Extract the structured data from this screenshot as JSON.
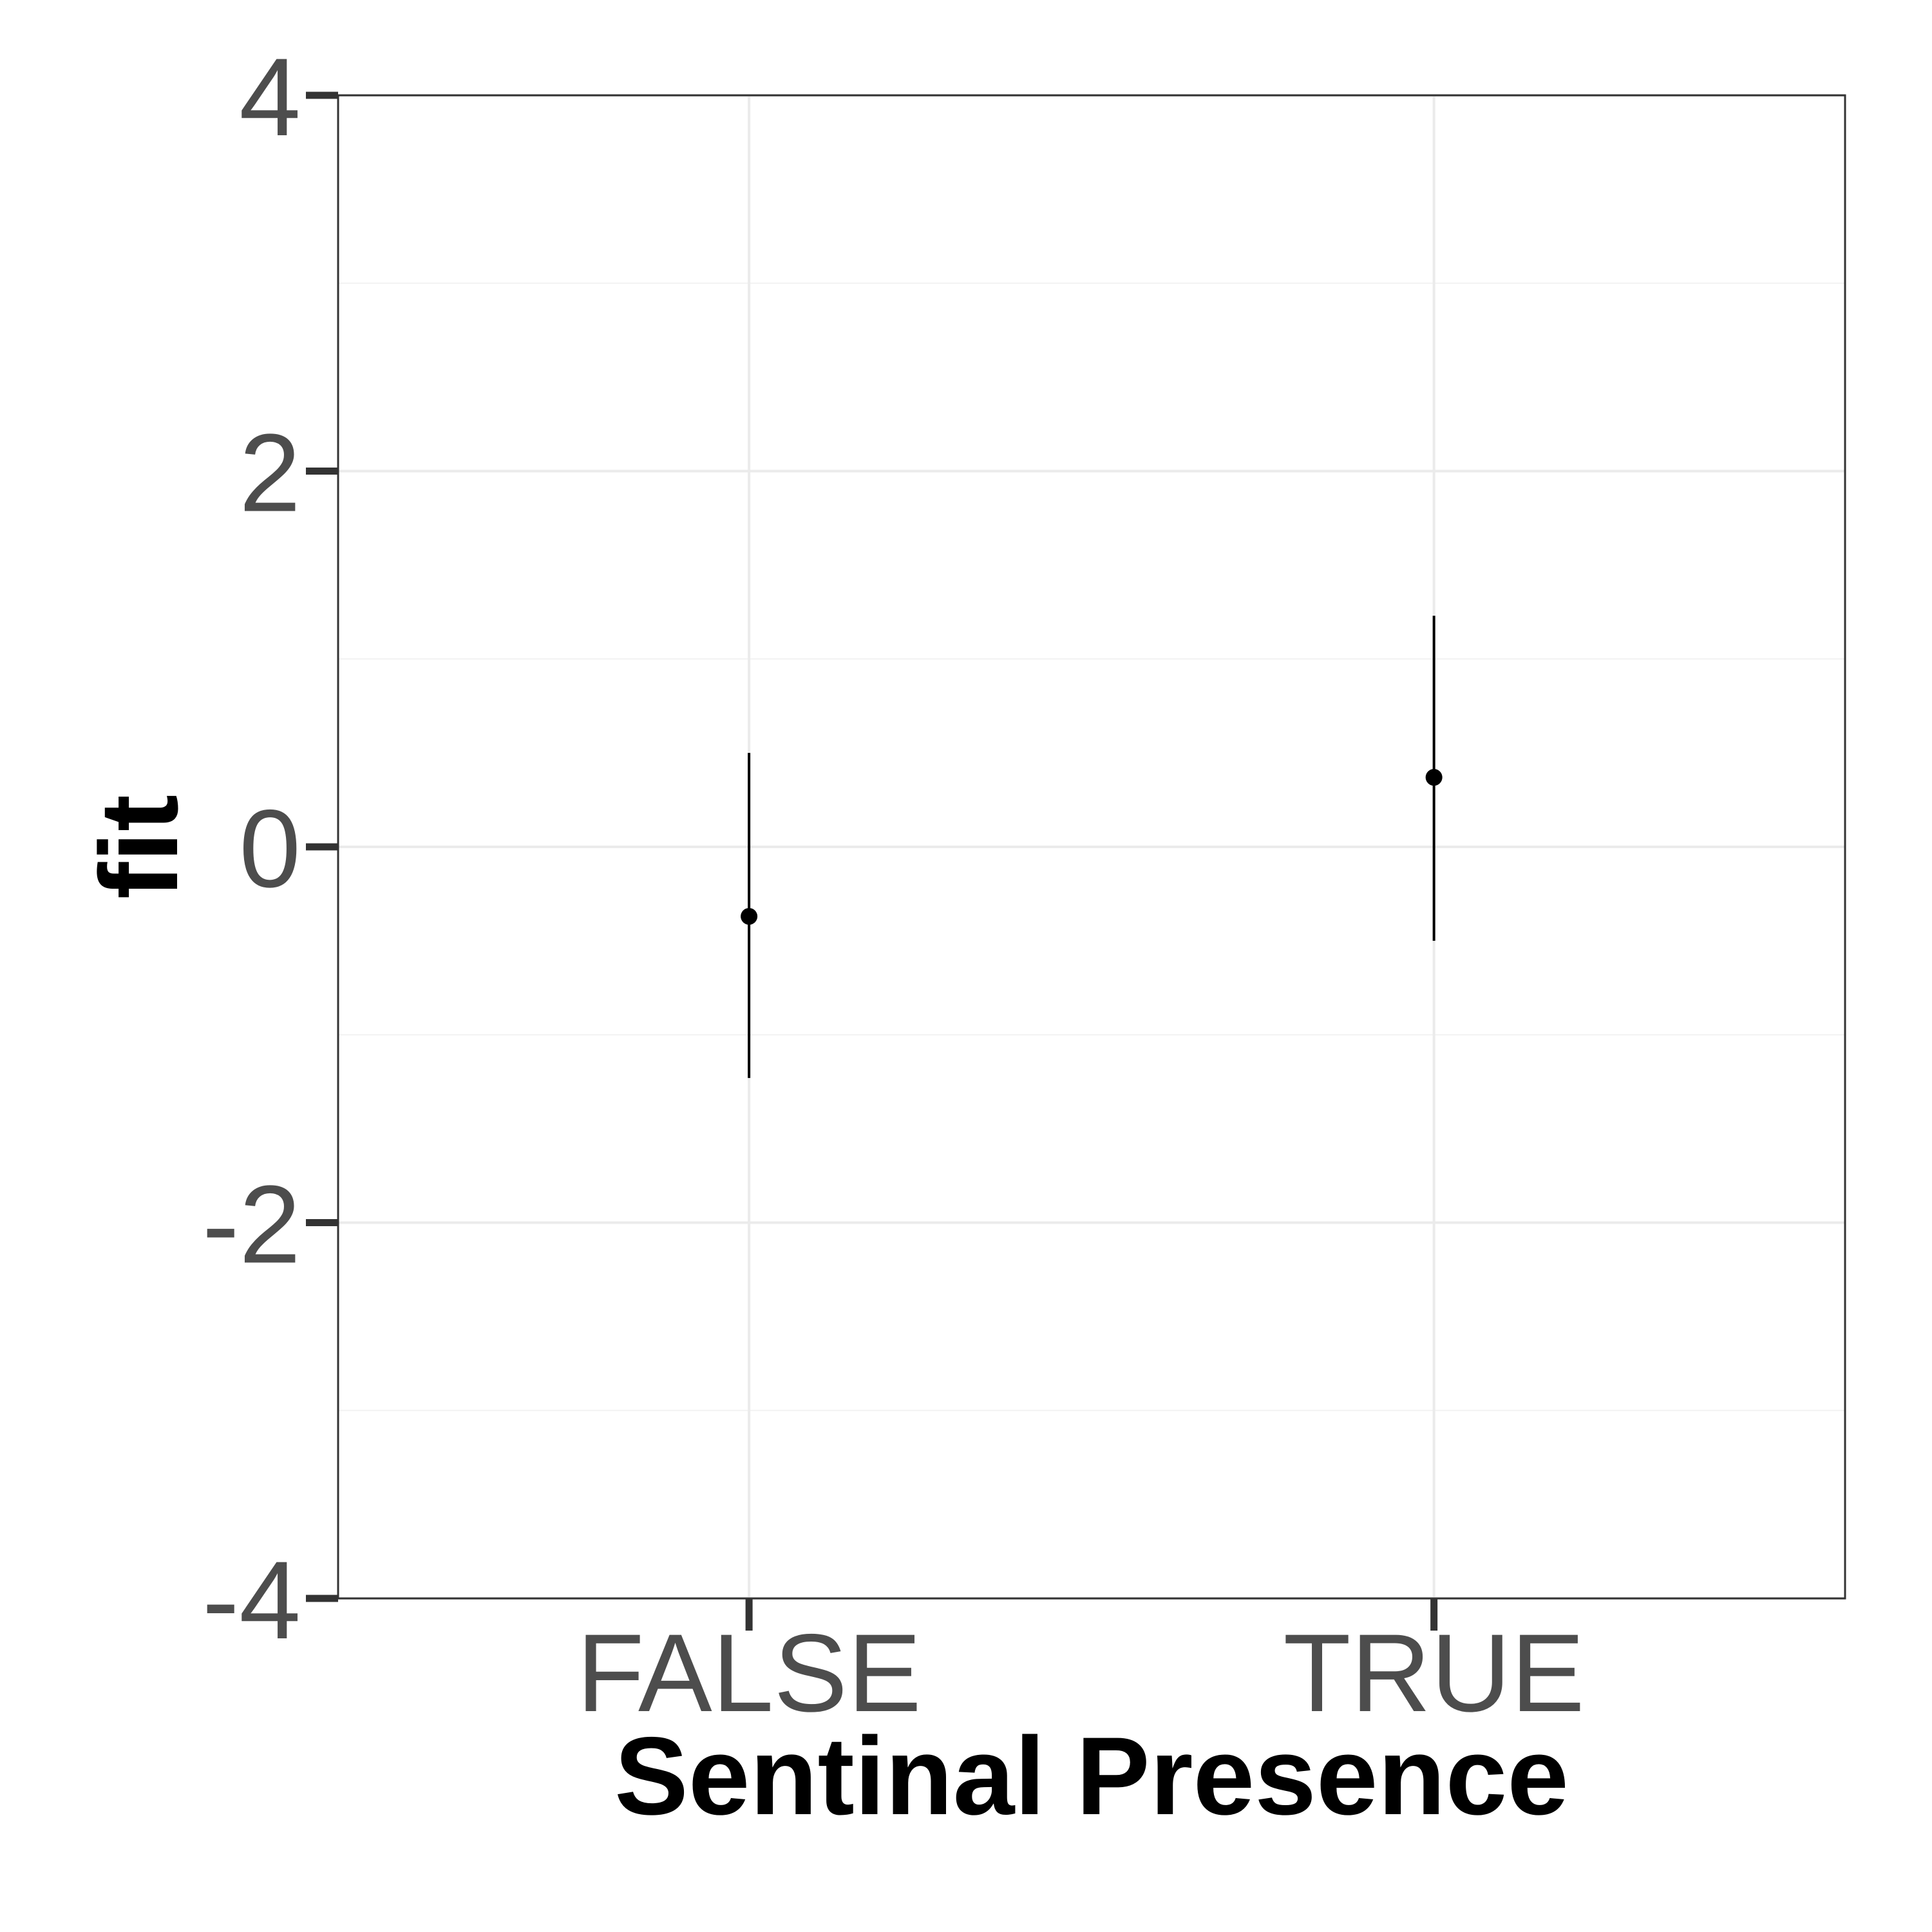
{
  "chart_data": {
    "type": "scatter",
    "title": "",
    "xlabel": "Sentinal Presence",
    "ylabel": "fit",
    "categories": [
      "FALSE",
      "TRUE"
    ],
    "series": [
      {
        "values": [
          -0.37,
          0.37
        ],
        "lower": [
          -1.23,
          -0.5
        ],
        "upper": [
          0.5,
          1.23
        ]
      }
    ],
    "ylim": [
      -4,
      4
    ],
    "yticks": [
      -4,
      -2,
      0,
      2,
      4
    ],
    "ytick_labels": [
      "-4",
      "-2",
      "0",
      "2",
      "4"
    ],
    "grid": true,
    "legend": "none"
  }
}
